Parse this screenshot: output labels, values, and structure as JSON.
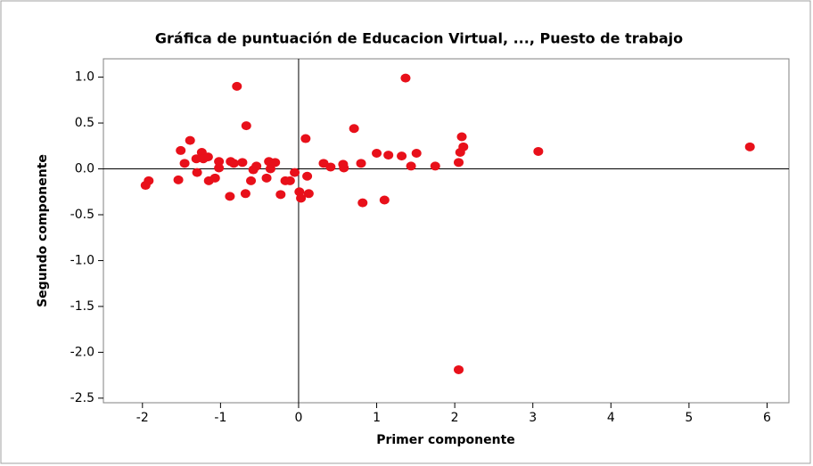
{
  "chart_data": {
    "type": "scatter",
    "title": "Gráfica de puntuación de Educacion Virtual, ..., Puesto de trabajo",
    "x_label": "Primer componente",
    "y_label": "Segundo componente",
    "color": "#e8101a",
    "xlim": [
      -2.5,
      6.28
    ],
    "ylim": [
      -2.55,
      1.2
    ],
    "xticks": [
      -2,
      -1,
      0,
      1,
      2,
      3,
      4,
      5,
      6
    ],
    "yticks": [
      {
        "value": 1,
        "label": "1.0"
      },
      0.5,
      {
        "value": 0,
        "label": "0.0"
      },
      -0.5,
      {
        "value": -1,
        "label": "-1.0"
      },
      -1.5,
      {
        "value": -2,
        "label": "-2.0"
      },
      -2.5
    ],
    "reference_lines": true,
    "x": [
      -1.96,
      -1.92,
      -1.54,
      -1.51,
      -1.46,
      -1.39,
      -1.31,
      -1.3,
      -1.24,
      -1.22,
      -1.16,
      -1.15,
      -1.07,
      -1.02,
      -1.02,
      -0.88,
      -0.87,
      -0.83,
      -0.79,
      -0.72,
      -0.68,
      -0.67,
      -0.61,
      -0.58,
      -0.54,
      -0.41,
      -0.38,
      -0.36,
      -0.3,
      -0.23,
      -0.17,
      -0.11,
      -0.05,
      0.01,
      0.03,
      0.09,
      0.11,
      0.13,
      0.32,
      0.41,
      0.57,
      0.58,
      0.71,
      0.8,
      0.82,
      1.0,
      1.1,
      1.15,
      1.32,
      1.37,
      1.44,
      1.51,
      1.75,
      2.05,
      2.07,
      2.05,
      2.09,
      2.11,
      3.07,
      5.78
    ],
    "y": [
      -0.18,
      -0.13,
      -0.12,
      0.2,
      0.06,
      0.31,
      0.11,
      -0.04,
      0.18,
      0.11,
      0.13,
      -0.13,
      -0.1,
      0.08,
      0.01,
      -0.3,
      0.08,
      0.06,
      0.9,
      0.07,
      -0.27,
      0.47,
      -0.13,
      -0.01,
      0.03,
      -0.1,
      0.08,
      0.0,
      0.07,
      -0.28,
      -0.13,
      -0.13,
      -0.04,
      -0.25,
      -0.32,
      0.33,
      -0.08,
      -0.27,
      0.06,
      0.02,
      0.05,
      0.01,
      0.44,
      0.06,
      -0.37,
      0.17,
      -0.34,
      0.15,
      0.14,
      0.99,
      0.03,
      0.17,
      0.03,
      0.07,
      0.18,
      -2.19,
      0.35,
      0.24,
      0.19,
      0.24
    ]
  }
}
